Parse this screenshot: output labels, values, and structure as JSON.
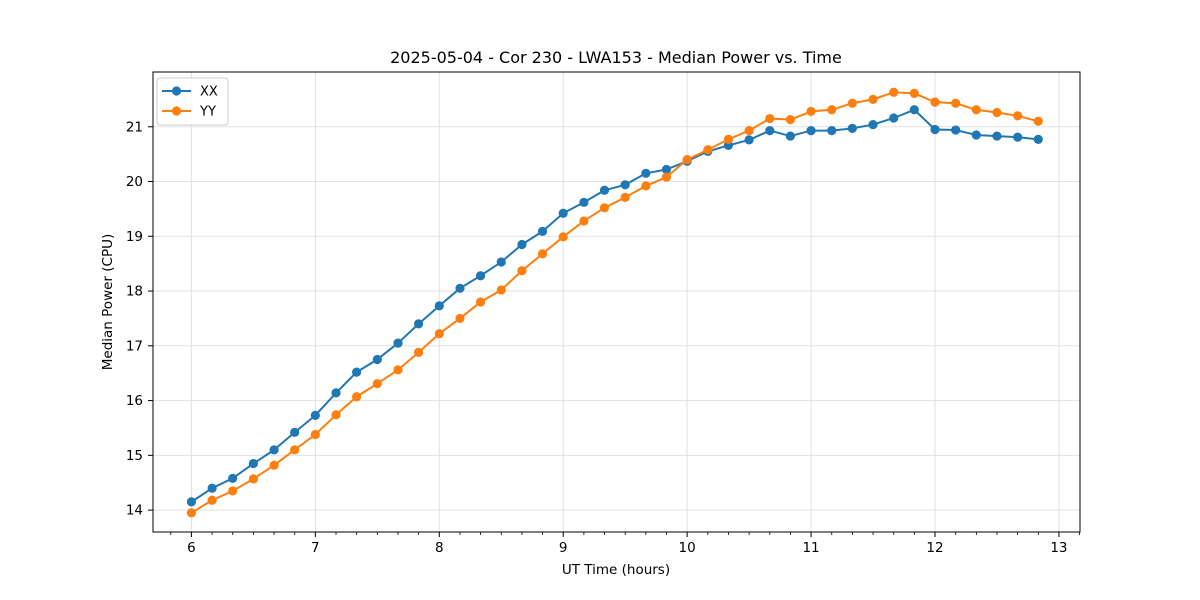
{
  "chart_data": {
    "type": "line",
    "title": "2025-05-04 - Cor 230 - LWA153 - Median Power vs. Time",
    "xlabel": "UT Time (hours)",
    "ylabel": "Median Power (CPU)",
    "xlim": [
      5.69,
      13.17
    ],
    "ylim": [
      13.6,
      22.0
    ],
    "x_major_ticks": [
      6,
      7,
      8,
      9,
      10,
      11,
      12,
      13
    ],
    "x_minor_tick_interval": 0.16667,
    "y_major_ticks": [
      14,
      15,
      16,
      17,
      18,
      19,
      20,
      21
    ],
    "grid": true,
    "grid_color": "#e2e2e2",
    "legend_position": "upper-left",
    "x": [
      6.0,
      6.167,
      6.333,
      6.5,
      6.667,
      6.833,
      7.0,
      7.167,
      7.333,
      7.5,
      7.667,
      7.833,
      8.0,
      8.167,
      8.333,
      8.5,
      8.667,
      8.833,
      9.0,
      9.167,
      9.333,
      9.5,
      9.667,
      9.833,
      10.0,
      10.167,
      10.333,
      10.5,
      10.667,
      10.833,
      11.0,
      11.167,
      11.333,
      11.5,
      11.667,
      11.833,
      12.0,
      12.167,
      12.333,
      12.5,
      12.667,
      12.833
    ],
    "series": [
      {
        "name": "XX",
        "color": "#1f77b4",
        "values": [
          14.15,
          14.4,
          14.58,
          14.85,
          15.1,
          15.42,
          15.73,
          16.14,
          16.52,
          16.75,
          17.05,
          17.4,
          17.73,
          18.05,
          18.28,
          18.53,
          18.85,
          19.09,
          19.42,
          19.62,
          19.84,
          19.94,
          20.15,
          20.22,
          20.37,
          20.55,
          20.66,
          20.76,
          20.93,
          20.83,
          20.93,
          20.93,
          20.97,
          21.04,
          21.16,
          21.31,
          20.95,
          20.94,
          20.85,
          20.83,
          20.81,
          20.77
        ]
      },
      {
        "name": "YY",
        "color": "#ff7f0e",
        "values": [
          13.95,
          14.18,
          14.35,
          14.57,
          14.82,
          15.1,
          15.38,
          15.74,
          16.07,
          16.31,
          16.56,
          16.88,
          17.22,
          17.5,
          17.8,
          18.02,
          18.37,
          18.68,
          18.99,
          19.28,
          19.52,
          19.71,
          19.92,
          20.08,
          20.4,
          20.58,
          20.77,
          20.93,
          21.15,
          21.13,
          21.28,
          21.31,
          21.43,
          21.5,
          21.63,
          21.61,
          21.45,
          21.43,
          21.31,
          21.26,
          21.2,
          21.1
        ]
      }
    ]
  }
}
